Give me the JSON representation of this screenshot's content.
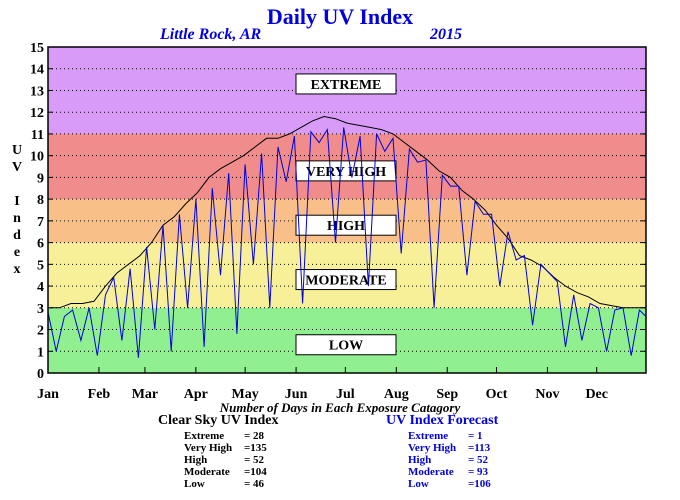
{
  "header": {
    "title": "Daily UV Index",
    "location": "Little Rock, AR",
    "year": "2015"
  },
  "axis": {
    "ylabel_vertical": "U\nV\n\nI\nn\nd\ne\nx",
    "x_caption": "Number of Days in Each Exposure Catagory"
  },
  "colors": {
    "title": "#0000e0",
    "clear_sky_line": "#000000",
    "forecast_line": "#0000e0",
    "band_low": "#90f090",
    "band_moderate": "#f8f098",
    "band_high": "#f8c088",
    "band_very_high": "#f08c8c",
    "band_extreme": "#d89cf8"
  },
  "chart_data": {
    "type": "line",
    "title": "Daily UV Index",
    "subtitle": "Little Rock, AR 2015",
    "ylabel": "UV Index",
    "xlabel": "Number of Days in Each Exposure Catagory",
    "ylim": [
      0,
      15
    ],
    "xlim": [
      1,
      365
    ],
    "grid": true,
    "y_ticks": [
      "0",
      "1",
      "2",
      "3",
      "4",
      "5",
      "6",
      "7",
      "8",
      "9",
      "10",
      "11",
      "12",
      "13",
      "14",
      "15"
    ],
    "month_labels": [
      {
        "label": "Jan",
        "day": 1
      },
      {
        "label": "Feb",
        "day": 32
      },
      {
        "label": "Mar",
        "day": 60
      },
      {
        "label": "Apr",
        "day": 91
      },
      {
        "label": "May",
        "day": 121
      },
      {
        "label": "Jun",
        "day": 152
      },
      {
        "label": "Jul",
        "day": 182
      },
      {
        "label": "Aug",
        "day": 213
      },
      {
        "label": "Sep",
        "day": 244
      },
      {
        "label": "Oct",
        "day": 274
      },
      {
        "label": "Nov",
        "day": 305
      },
      {
        "label": "Dec",
        "day": 335
      }
    ],
    "bands": [
      {
        "name": "LOW",
        "from": 0,
        "to": 3,
        "color": "#90f090"
      },
      {
        "name": "MODERATE",
        "from": 3,
        "to": 6,
        "color": "#f8f098"
      },
      {
        "name": "HIGH",
        "from": 6,
        "to": 8,
        "color": "#f8c088"
      },
      {
        "name": "VERY HIGH",
        "from": 8,
        "to": 11,
        "color": "#f08c8c"
      },
      {
        "name": "EXTREME",
        "from": 11,
        "to": 15,
        "color": "#d89cf8"
      }
    ],
    "band_labels": [
      {
        "text": "EXTREME",
        "y": 13.3
      },
      {
        "text": "VERY HIGH",
        "y": 9.3
      },
      {
        "text": "HIGH",
        "y": 6.8
      },
      {
        "text": "MODERATE",
        "y": 4.3
      },
      {
        "text": "LOW",
        "y": 1.3
      }
    ],
    "series": [
      {
        "name": "Clear Sky UV Index",
        "color": "#000000",
        "x": [
          1,
          8,
          15,
          22,
          29,
          36,
          43,
          50,
          57,
          64,
          71,
          78,
          85,
          92,
          99,
          106,
          113,
          120,
          127,
          134,
          141,
          148,
          155,
          162,
          169,
          176,
          183,
          190,
          197,
          204,
          211,
          218,
          225,
          232,
          239,
          246,
          253,
          260,
          267,
          274,
          281,
          288,
          295,
          302,
          309,
          316,
          323,
          330,
          337,
          344,
          351,
          358,
          365
        ],
        "values": [
          3.0,
          3.0,
          3.2,
          3.2,
          3.3,
          4.0,
          4.6,
          5.0,
          5.4,
          6.0,
          6.8,
          7.2,
          7.8,
          8.3,
          9.0,
          9.4,
          9.7,
          10.0,
          10.4,
          10.8,
          10.8,
          11.0,
          11.3,
          11.6,
          11.8,
          11.7,
          11.5,
          11.4,
          11.3,
          11.2,
          11.0,
          10.6,
          10.2,
          9.8,
          9.3,
          9.0,
          8.4,
          8.0,
          7.5,
          6.8,
          6.2,
          5.4,
          5.2,
          4.9,
          4.4,
          4.0,
          3.7,
          3.5,
          3.2,
          3.1,
          3.0,
          3.0,
          3.0
        ]
      },
      {
        "name": "UV Index Forecast",
        "color": "#0000e0",
        "x": [
          1,
          6,
          11,
          16,
          21,
          26,
          31,
          36,
          41,
          46,
          51,
          56,
          61,
          66,
          71,
          76,
          81,
          86,
          91,
          96,
          101,
          106,
          111,
          116,
          121,
          126,
          131,
          136,
          141,
          146,
          151,
          156,
          161,
          166,
          171,
          176,
          181,
          186,
          191,
          196,
          201,
          206,
          211,
          216,
          221,
          226,
          231,
          236,
          241,
          246,
          251,
          256,
          261,
          266,
          271,
          276,
          281,
          286,
          291,
          296,
          301,
          306,
          311,
          316,
          321,
          326,
          331,
          336,
          341,
          346,
          351,
          356,
          361,
          365
        ],
        "values": [
          2.8,
          1.0,
          2.6,
          2.9,
          1.5,
          3.0,
          0.8,
          3.6,
          4.4,
          1.5,
          4.8,
          0.7,
          5.8,
          2.0,
          6.8,
          1.0,
          7.3,
          3.0,
          8.0,
          1.2,
          8.5,
          4.5,
          9.2,
          1.8,
          9.6,
          5.0,
          10.1,
          3.0,
          10.4,
          8.8,
          10.9,
          3.2,
          11.1,
          10.6,
          11.2,
          6.0,
          11.3,
          9.0,
          10.9,
          4.0,
          11.0,
          10.2,
          10.8,
          5.5,
          10.3,
          9.7,
          9.8,
          3.0,
          9.1,
          8.6,
          8.6,
          4.5,
          7.9,
          7.3,
          7.3,
          4.0,
          6.5,
          5.2,
          5.4,
          2.2,
          5.0,
          4.6,
          4.2,
          1.2,
          3.6,
          1.5,
          3.2,
          3.0,
          1.0,
          2.9,
          3.0,
          0.8,
          2.9,
          2.6
        ]
      }
    ]
  },
  "summary": {
    "clear": {
      "title": "Clear Sky UV Index",
      "rows": [
        {
          "label": "Extreme",
          "value": "= 28"
        },
        {
          "label": "Very High",
          "value": "=135"
        },
        {
          "label": "High",
          "value": "= 52"
        },
        {
          "label": "Moderate",
          "value": "=104"
        },
        {
          "label": "Low",
          "value": "= 46"
        }
      ]
    },
    "forecast": {
      "title": "UV Index Forecast",
      "rows": [
        {
          "label": "Extreme",
          "value": "= 1"
        },
        {
          "label": "Very High",
          "value": "=113"
        },
        {
          "label": "High",
          "value": "= 52"
        },
        {
          "label": "Moderate",
          "value": "= 93"
        },
        {
          "label": "Low",
          "value": "=106"
        }
      ]
    }
  }
}
